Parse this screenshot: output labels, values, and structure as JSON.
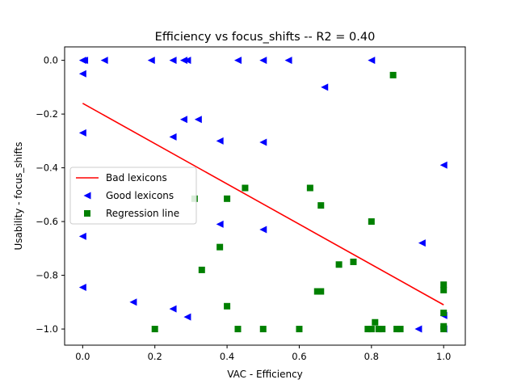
{
  "chart_data": {
    "type": "scatter",
    "title": "Efficiency  vs  focus_shifts -- R2 = 0.40",
    "xlabel": "VAC - Efficiency",
    "ylabel": "Usability - focus_shifts",
    "xlim": [
      -0.05,
      1.06
    ],
    "ylim": [
      -1.06,
      0.05
    ],
    "xticks": [
      "0.0",
      "0.2",
      "0.4",
      "0.6",
      "0.8",
      "1.0"
    ],
    "xtick_values": [
      0.0,
      0.2,
      0.4,
      0.6,
      0.8,
      1.0
    ],
    "yticks": [
      "0.0",
      "−0.2",
      "−0.4",
      "−0.6",
      "−0.8",
      "−1.0"
    ],
    "ytick_values": [
      0.0,
      -0.2,
      -0.4,
      -0.6,
      -0.8,
      -1.0
    ],
    "grid": false,
    "legend_position": "center-left",
    "legend": [
      {
        "label": "Bad lexicons",
        "marker": "line",
        "color": "#ff0000"
      },
      {
        "label": "Good lexicons",
        "marker": "triangle-left",
        "color": "#0000ff"
      },
      {
        "label": "Regression line",
        "marker": "square",
        "color": "#008000"
      }
    ],
    "series": [
      {
        "name": "Bad lexicons",
        "kind": "line",
        "color": "#ff0000",
        "x": [
          0.0,
          1.0
        ],
        "y": [
          -0.16,
          -0.91
        ]
      },
      {
        "name": "Good lexicons",
        "kind": "scatter",
        "marker": "triangle-left",
        "color": "#0000ff",
        "x": [
          0.0,
          0.005,
          0.06,
          0.19,
          0.25,
          0.28,
          0.29,
          0.43,
          0.5,
          0.57,
          0.8,
          0.0,
          0.67,
          0.0,
          0.28,
          0.32,
          0.25,
          0.38,
          0.5,
          1.0,
          0.38,
          0.5,
          0.0,
          0.94,
          0.0,
          0.14,
          0.25,
          0.29,
          0.93,
          1.0,
          1.0
        ],
        "y": [
          0.0,
          0.0,
          0.0,
          0.0,
          0.0,
          0.0,
          0.0,
          0.0,
          0.0,
          0.0,
          0.0,
          -0.05,
          -0.1,
          -0.27,
          -0.22,
          -0.22,
          -0.285,
          -0.3,
          -0.305,
          -0.39,
          -0.61,
          -0.63,
          -0.655,
          -0.68,
          -0.845,
          -0.9,
          -0.925,
          -0.955,
          -1.0,
          -0.95,
          -1.0
        ]
      },
      {
        "name": "Regression line",
        "kind": "scatter",
        "marker": "square",
        "color": "#008000",
        "x": [
          0.86,
          0.31,
          0.4,
          0.45,
          0.63,
          0.66,
          0.8,
          0.38,
          0.33,
          0.71,
          0.75,
          0.65,
          0.66,
          1.0,
          1.0,
          0.4,
          1.0,
          0.81,
          0.2,
          0.43,
          0.5,
          0.6,
          0.79,
          0.8,
          0.82,
          0.83,
          0.87,
          0.88,
          1.0,
          1.0
        ],
        "y": [
          -0.055,
          -0.515,
          -0.515,
          -0.475,
          -0.475,
          -0.54,
          -0.6,
          -0.695,
          -0.78,
          -0.76,
          -0.75,
          -0.86,
          -0.86,
          -0.835,
          -0.855,
          -0.915,
          -0.94,
          -0.975,
          -1.0,
          -1.0,
          -1.0,
          -1.0,
          -1.0,
          -1.0,
          -1.0,
          -1.0,
          -1.0,
          -1.0,
          -0.99,
          -1.0
        ]
      }
    ]
  }
}
